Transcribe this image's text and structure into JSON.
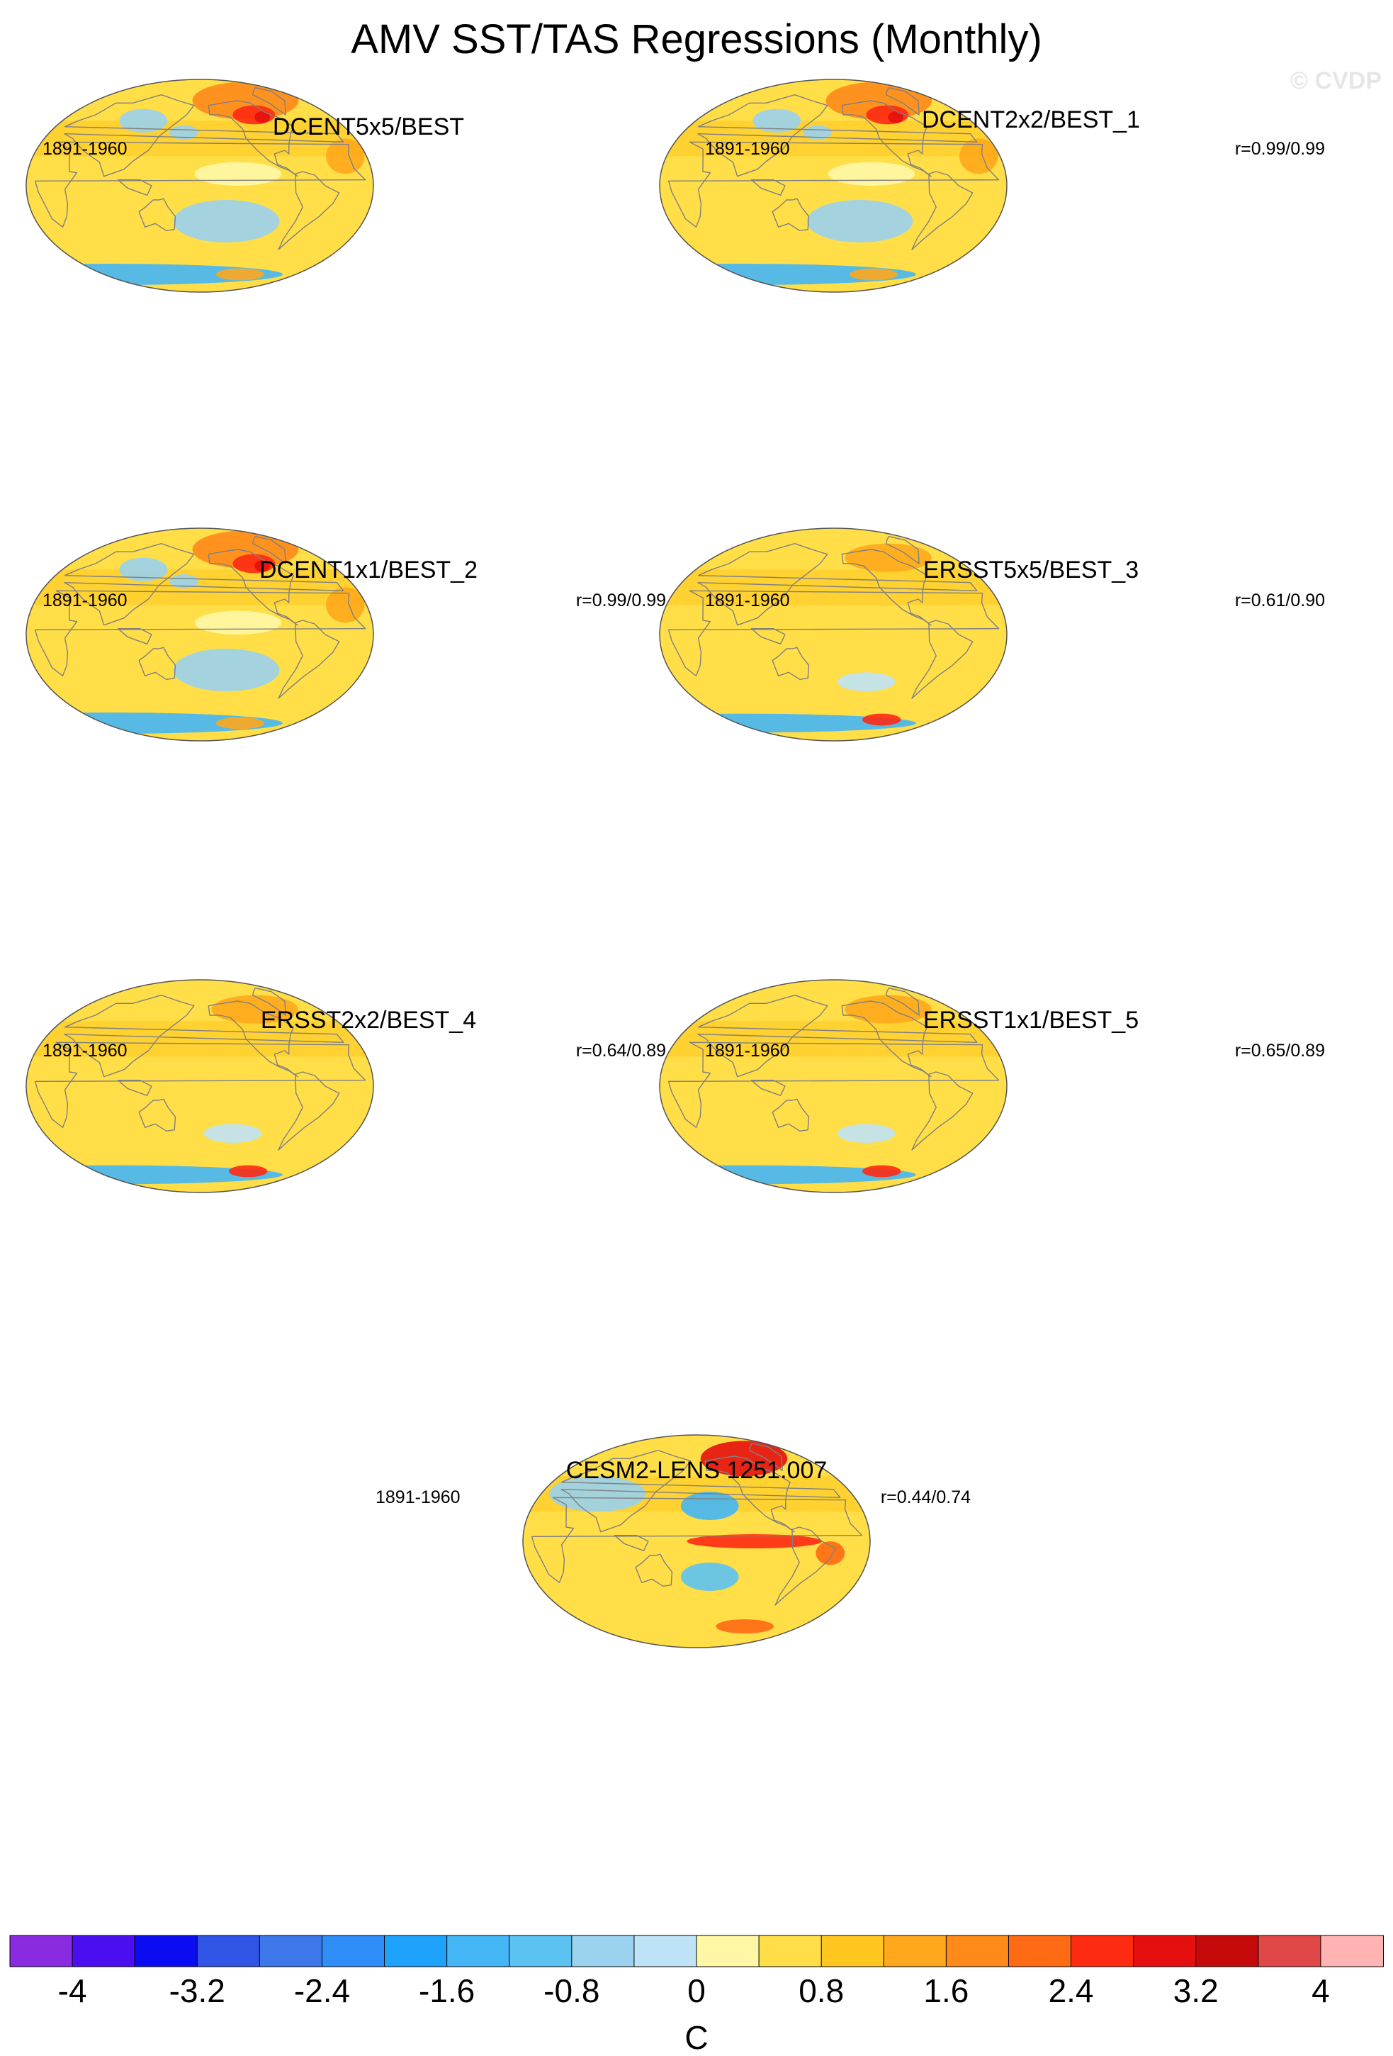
{
  "chart_data": {
    "type": "heatmap",
    "title": "AMV SST/TAS Regressions (Monthly)",
    "watermark": "© CVDP",
    "panels": [
      {
        "title": "DCENT5x5/BEST",
        "period": "1891-1960",
        "corr": "",
        "blobs": [
          {
            "lon": -95,
            "lat": 72,
            "rx": 55,
            "ry": 16,
            "v": 1.6
          },
          {
            "lon": -98,
            "lat": 60,
            "rx": 22,
            "ry": 8,
            "v": 2.4
          },
          {
            "lon": -88,
            "lat": 58,
            "rx": 8,
            "ry": 5,
            "v": 3.0
          },
          {
            "lon": -20,
            "lat": 25,
            "rx": 20,
            "ry": 15,
            "v": 1.2
          },
          {
            "lon": -140,
            "lat": 10,
            "rx": 45,
            "ry": 10,
            "v": 0.2
          },
          {
            "lon": -150,
            "lat": -30,
            "rx": 55,
            "ry": 18,
            "v": -0.6
          },
          {
            "lon": 100,
            "lat": 55,
            "rx": 25,
            "ry": 10,
            "v": -0.6
          },
          {
            "lon": 160,
            "lat": 45,
            "rx": 15,
            "ry": 6,
            "v": -0.6
          },
          {
            "lon": 0,
            "lat": -75,
            "rx": 180,
            "ry": 9,
            "v": -1.4
          },
          {
            "lon": -100,
            "lat": -75,
            "rx": 25,
            "ry": 5,
            "v": 1.4
          }
        ]
      },
      {
        "title": "DCENT2x2/BEST_1",
        "period": "1891-1960",
        "corr": "r=0.99/0.99",
        "blobs": [
          {
            "lon": -95,
            "lat": 72,
            "rx": 55,
            "ry": 16,
            "v": 1.6
          },
          {
            "lon": -98,
            "lat": 60,
            "rx": 22,
            "ry": 8,
            "v": 2.4
          },
          {
            "lon": -88,
            "lat": 58,
            "rx": 8,
            "ry": 5,
            "v": 3.0
          },
          {
            "lon": -20,
            "lat": 25,
            "rx": 20,
            "ry": 15,
            "v": 1.2
          },
          {
            "lon": -140,
            "lat": 10,
            "rx": 45,
            "ry": 10,
            "v": 0.2
          },
          {
            "lon": -150,
            "lat": -30,
            "rx": 55,
            "ry": 18,
            "v": -0.6
          },
          {
            "lon": 100,
            "lat": 55,
            "rx": 25,
            "ry": 10,
            "v": -0.6
          },
          {
            "lon": 160,
            "lat": 45,
            "rx": 15,
            "ry": 6,
            "v": -0.6
          },
          {
            "lon": 0,
            "lat": -75,
            "rx": 180,
            "ry": 9,
            "v": -1.4
          },
          {
            "lon": -100,
            "lat": -75,
            "rx": 25,
            "ry": 5,
            "v": 1.4
          }
        ]
      },
      {
        "title": "DCENT1x1/BEST_2",
        "period": "1891-1960",
        "corr": "r=0.99/0.99",
        "blobs": [
          {
            "lon": -95,
            "lat": 72,
            "rx": 55,
            "ry": 16,
            "v": 1.6
          },
          {
            "lon": -98,
            "lat": 60,
            "rx": 22,
            "ry": 8,
            "v": 2.4
          },
          {
            "lon": -88,
            "lat": 58,
            "rx": 8,
            "ry": 5,
            "v": 3.0
          },
          {
            "lon": -20,
            "lat": 25,
            "rx": 20,
            "ry": 15,
            "v": 1.2
          },
          {
            "lon": -140,
            "lat": 10,
            "rx": 45,
            "ry": 10,
            "v": 0.2
          },
          {
            "lon": -150,
            "lat": -30,
            "rx": 55,
            "ry": 18,
            "v": -0.6
          },
          {
            "lon": 100,
            "lat": 55,
            "rx": 25,
            "ry": 10,
            "v": -0.6
          },
          {
            "lon": 160,
            "lat": 45,
            "rx": 15,
            "ry": 6,
            "v": -0.6
          },
          {
            "lon": 0,
            "lat": -75,
            "rx": 180,
            "ry": 9,
            "v": -1.4
          },
          {
            "lon": -100,
            "lat": -75,
            "rx": 25,
            "ry": 5,
            "v": 1.4
          }
        ]
      },
      {
        "title": "ERSST5x5/BEST_3",
        "period": "1891-1960",
        "corr": "r=0.61/0.90",
        "blobs": [
          {
            "lon": -90,
            "lat": 65,
            "rx": 45,
            "ry": 12,
            "v": 1.4
          },
          {
            "lon": -140,
            "lat": 0,
            "rx": 60,
            "ry": 25,
            "v": 0.4
          },
          {
            "lon": -140,
            "lat": -40,
            "rx": 30,
            "ry": 8,
            "v": -0.4
          },
          {
            "lon": 0,
            "lat": -75,
            "rx": 180,
            "ry": 8,
            "v": -1.4
          },
          {
            "lon": -90,
            "lat": -72,
            "rx": 20,
            "ry": 5,
            "v": 2.4
          }
        ]
      },
      {
        "title": "ERSST2x2/BEST_4",
        "period": "1891-1960",
        "corr": "r=0.64/0.89",
        "blobs": [
          {
            "lon": -90,
            "lat": 65,
            "rx": 45,
            "ry": 12,
            "v": 1.4
          },
          {
            "lon": -140,
            "lat": 0,
            "rx": 60,
            "ry": 25,
            "v": 0.4
          },
          {
            "lon": -140,
            "lat": -40,
            "rx": 30,
            "ry": 8,
            "v": -0.4
          },
          {
            "lon": 0,
            "lat": -75,
            "rx": 180,
            "ry": 8,
            "v": -1.4
          },
          {
            "lon": -90,
            "lat": -72,
            "rx": 20,
            "ry": 5,
            "v": 2.4
          }
        ]
      },
      {
        "title": "ERSST1x1/BEST_5",
        "period": "1891-1960",
        "corr": "r=0.65/0.89",
        "blobs": [
          {
            "lon": -90,
            "lat": 65,
            "rx": 45,
            "ry": 12,
            "v": 1.4
          },
          {
            "lon": -140,
            "lat": 0,
            "rx": 60,
            "ry": 25,
            "v": 0.4
          },
          {
            "lon": -140,
            "lat": -40,
            "rx": 30,
            "ry": 8,
            "v": -0.4
          },
          {
            "lon": 0,
            "lat": -75,
            "rx": 180,
            "ry": 8,
            "v": -1.4
          },
          {
            "lon": -90,
            "lat": -72,
            "rx": 20,
            "ry": 5,
            "v": 2.4
          }
        ]
      },
      {
        "title": "CESM2-LENS 1251.007",
        "period": "1891-1960",
        "corr": "r=0.44/0.74",
        "blobs": [
          {
            "lon": -95,
            "lat": 70,
            "rx": 45,
            "ry": 15,
            "v": 3.0
          },
          {
            "lon": -120,
            "lat": 0,
            "rx": 70,
            "ry": 6,
            "v": 2.6
          },
          {
            "lon": -165,
            "lat": 30,
            "rx": 30,
            "ry": 12,
            "v": -1.4
          },
          {
            "lon": -165,
            "lat": -30,
            "rx": 30,
            "ry": 12,
            "v": -1.2
          },
          {
            "lon": -40,
            "lat": -10,
            "rx": 15,
            "ry": 10,
            "v": 2.0
          },
          {
            "lon": 60,
            "lat": 40,
            "rx": 50,
            "ry": 15,
            "v": -0.6
          },
          {
            "lon": -90,
            "lat": -72,
            "rx": 30,
            "ry": 6,
            "v": 2.0
          }
        ]
      }
    ],
    "colorbar": {
      "levels": [
        -4.4,
        -4,
        -3.6,
        -3.2,
        -2.8,
        -2.4,
        -2,
        -1.6,
        -1.2,
        -0.8,
        -0.4,
        0,
        0.4,
        0.8,
        1.2,
        1.6,
        2,
        2.4,
        2.8,
        3.2,
        3.6,
        4,
        4.4
      ],
      "colors": [
        "#8a2be2",
        "#4b0ef0",
        "#0c0cf2",
        "#2f54e6",
        "#3d77ea",
        "#2e8df6",
        "#1ea3fc",
        "#44b6f6",
        "#5cc2f2",
        "#9ad2ef",
        "#bfe3f6",
        "#fff7a6",
        "#ffde47",
        "#ffc61f",
        "#ffa81c",
        "#ff8a1a",
        "#ff6a14",
        "#ff2a12",
        "#e60f0f",
        "#c40a0a",
        "#e04848",
        "#ffb3b3"
      ],
      "tick_labels": [
        "-4",
        "-3.2",
        "-2.4",
        "-1.6",
        "-0.8",
        "0",
        "0.8",
        "1.6",
        "2.4",
        "3.2",
        "4"
      ],
      "unit": "C"
    }
  }
}
